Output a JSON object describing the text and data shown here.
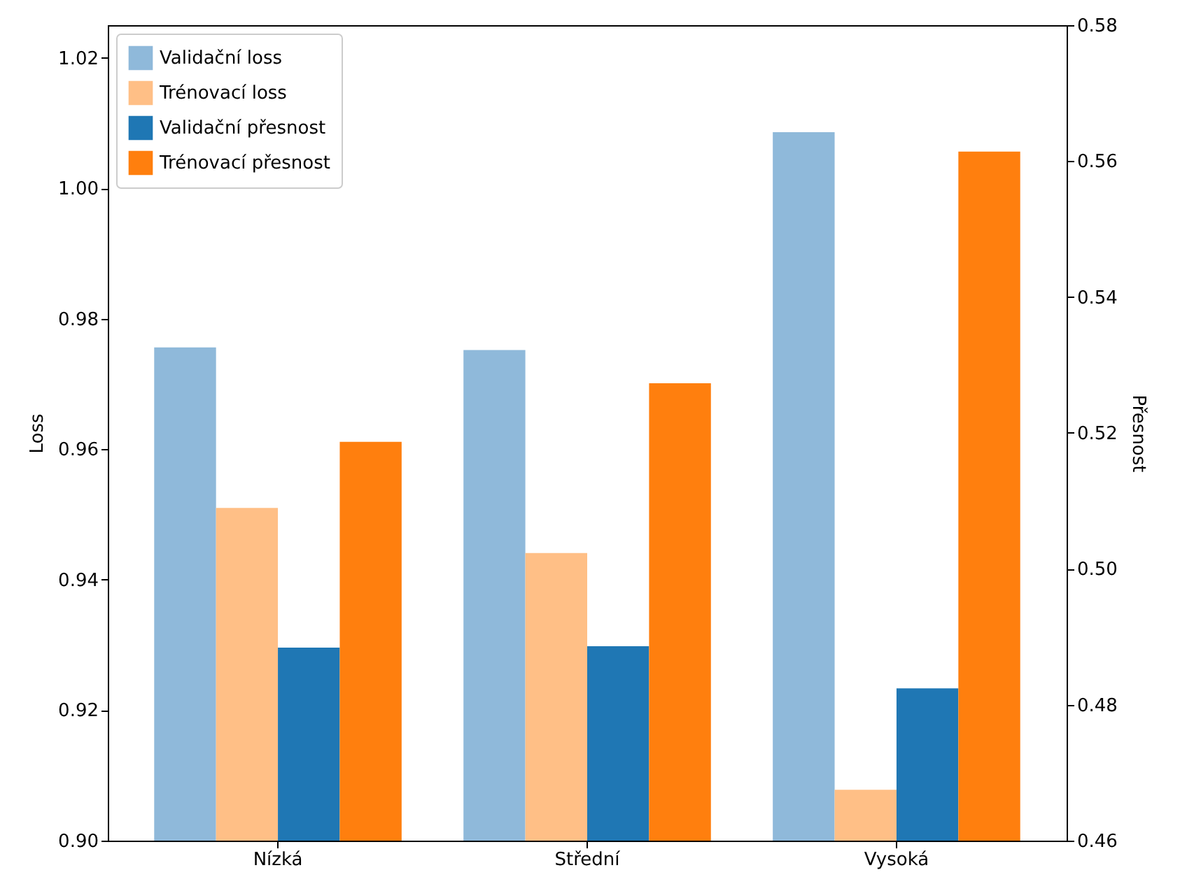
{
  "chart_data": {
    "type": "bar",
    "xlabel": null,
    "ylabel": "Loss",
    "y2label": "Přesnost",
    "categories": [
      "Nízká",
      "Střední",
      "Vysoká"
    ],
    "series": [
      {
        "name": "Validační loss",
        "color": "#8fb9da",
        "values": [
          0.9756,
          0.9752,
          1.0086
        ]
      },
      {
        "name": "Trénovací loss",
        "color": "#ffbf86",
        "values": [
          0.951,
          0.9441,
          0.9078
        ]
      },
      {
        "name": "Validační přesnost",
        "color": "#1f77b4",
        "axis": "y2",
        "values": [
          0.4884,
          0.4886,
          0.4824
        ]
      },
      {
        "name": "Trénovací přesnost",
        "color": "#ff7f0e",
        "axis": "y2",
        "values": [
          0.5187,
          0.5273,
          0.5614
        ]
      }
    ],
    "ylim": [
      0.9,
      1.025
    ],
    "yticks": [
      {
        "value": 0.9,
        "label": "0.90"
      },
      0.92,
      0.94,
      0.96,
      0.98,
      {
        "value": 1.0,
        "label": "1.00"
      },
      1.02
    ],
    "y2lim": [
      0.46,
      0.58
    ],
    "y2ticks": [
      0.46,
      0.48,
      {
        "value": 0.5,
        "label": "0.50"
      },
      0.52,
      0.54,
      0.56,
      0.58
    ],
    "legend": "top left",
    "grid": false
  }
}
